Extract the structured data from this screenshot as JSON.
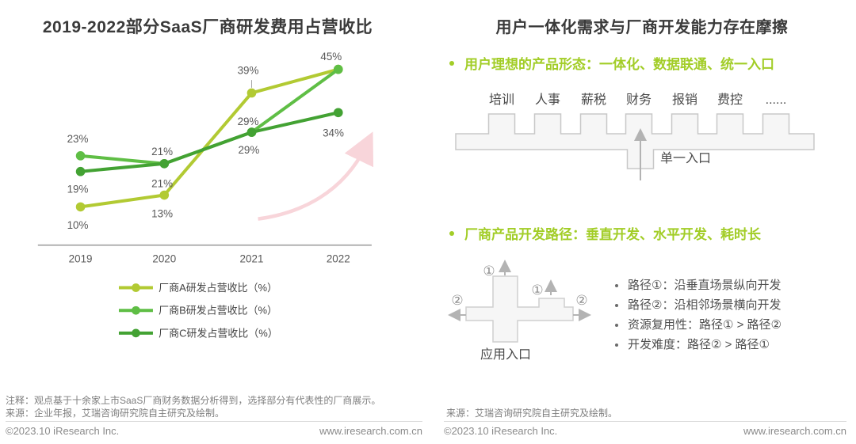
{
  "left": {
    "title": "2019-2022部分SaaS厂商研发费用占营收比",
    "note_line1": "注释：观点基于十余家上市SaaS厂商财务数据分析得到，选择部分有代表性的厂商展示。",
    "note_line2": "来源：企业年报，艾瑞咨询研究院自主研究及绘制。",
    "footer": {
      "copyright": "©2023.10 iResearch Inc.",
      "website": "www.iresearch.com.cn"
    }
  },
  "chart_data": {
    "type": "line",
    "title": "2019-2022部分SaaS厂商研发费用占营收比",
    "categories": [
      "2019",
      "2020",
      "2021",
      "2022"
    ],
    "series": [
      {
        "name": "厂商A研发占营收比（%）",
        "color": "#b2ca33",
        "values": [
          10,
          13,
          39,
          45
        ],
        "point_labels": [
          "10%",
          "13%",
          "39%",
          "45%"
        ]
      },
      {
        "name": "厂商B研发占营收比（%）",
        "color": "#5fbe45",
        "values": [
          23,
          21,
          29,
          45
        ],
        "point_labels": [
          "23%",
          "21%",
          "29%",
          ""
        ]
      },
      {
        "name": "厂商C研发占营收比（%）",
        "color": "#43a233",
        "values": [
          19,
          21,
          29,
          34
        ],
        "point_labels": [
          "19%",
          "21%",
          "29%",
          "34%"
        ]
      }
    ],
    "xlabel": "",
    "ylabel": "",
    "ylim": [
      0,
      50
    ],
    "grid": false,
    "legend_position": "bottom",
    "annotations": [
      {
        "type": "trend-arrow",
        "color": "#f8d5da",
        "direction": "up-right"
      }
    ]
  },
  "right": {
    "title": "用户一体化需求与厂商开发能力存在摩擦",
    "bullet1": "用户理想的产品形态：一体化、数据联通、统一入口",
    "comb": {
      "labels": [
        "培训",
        "人事",
        "薪税",
        "财务",
        "报销",
        "费控",
        "......"
      ],
      "entry_label": "单一入口"
    },
    "bullet2": "厂商产品开发路径：垂直开发、水平开发、耗时长",
    "path_diagram": {
      "circle1": "①",
      "circle2": "②",
      "entry_label": "应用入口"
    },
    "path_bullets": [
      "路径①：沿垂直场景纵向开发",
      "路径②：沿相邻场景横向开发",
      "资源复用性：路径① > 路径②",
      "开发难度：路径② > 路径①"
    ],
    "source": "来源：艾瑞咨询研究院自主研究及绘制。",
    "footer": {
      "copyright": "©2023.10 iResearch Inc.",
      "website": "www.iresearch.com.cn"
    }
  }
}
